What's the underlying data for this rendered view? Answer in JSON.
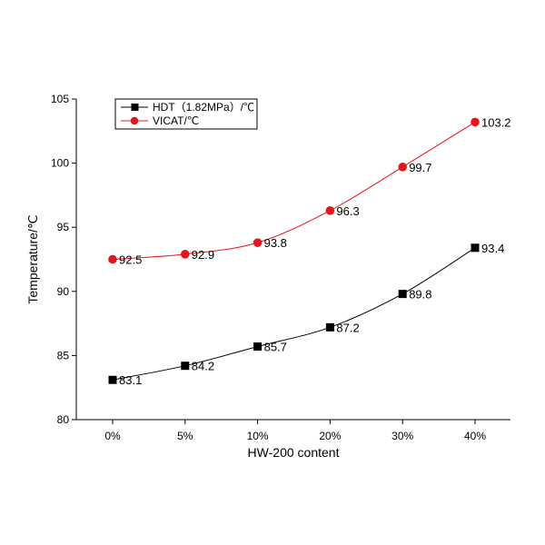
{
  "chart_data": {
    "type": "line",
    "categories": [
      "0%",
      "5%",
      "10%",
      "20%",
      "30%",
      "40%"
    ],
    "series": [
      {
        "name": "HDT（1.82MPa）/℃",
        "color": "#000000",
        "marker": "square",
        "values": [
          83.1,
          84.2,
          85.7,
          87.2,
          89.8,
          93.4
        ]
      },
      {
        "name": "VICAT/℃",
        "color": "#e8141c",
        "marker": "circle",
        "values": [
          92.5,
          92.9,
          93.8,
          96.3,
          99.7,
          103.2
        ]
      }
    ],
    "xlabel": "HW-200 content",
    "ylabel": "Temperature/℃",
    "ylim": [
      80,
      105
    ],
    "yticks": [
      80,
      85,
      90,
      95,
      100,
      105
    ],
    "grid": false,
    "legend_position": "top-left"
  }
}
